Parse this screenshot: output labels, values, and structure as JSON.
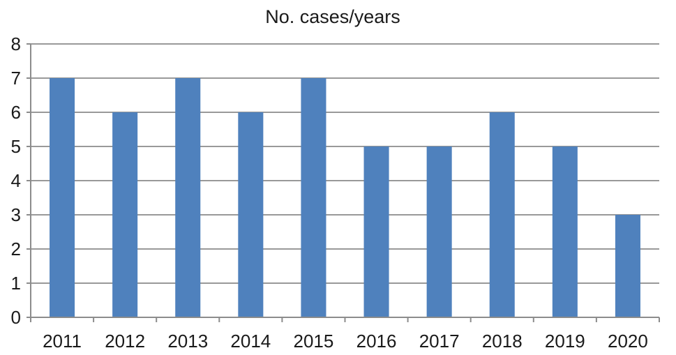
{
  "chart_data": {
    "type": "bar",
    "title": "No. cases/years",
    "xlabel": "",
    "ylabel": "",
    "categories": [
      "2011",
      "2012",
      "2013",
      "2014",
      "2015",
      "2016",
      "2017",
      "2018",
      "2019",
      "2020"
    ],
    "values": [
      7,
      6,
      7,
      6,
      7,
      5,
      5,
      6,
      5,
      3
    ],
    "ylim": [
      0,
      8
    ],
    "yticks": [
      "0",
      "1",
      "2",
      "3",
      "4",
      "5",
      "6",
      "7",
      "8"
    ],
    "grid": true,
    "legend": "none",
    "colors": {
      "bar": "#4f81bd",
      "grid": "#999999",
      "axis": "#8c8c8c"
    }
  }
}
